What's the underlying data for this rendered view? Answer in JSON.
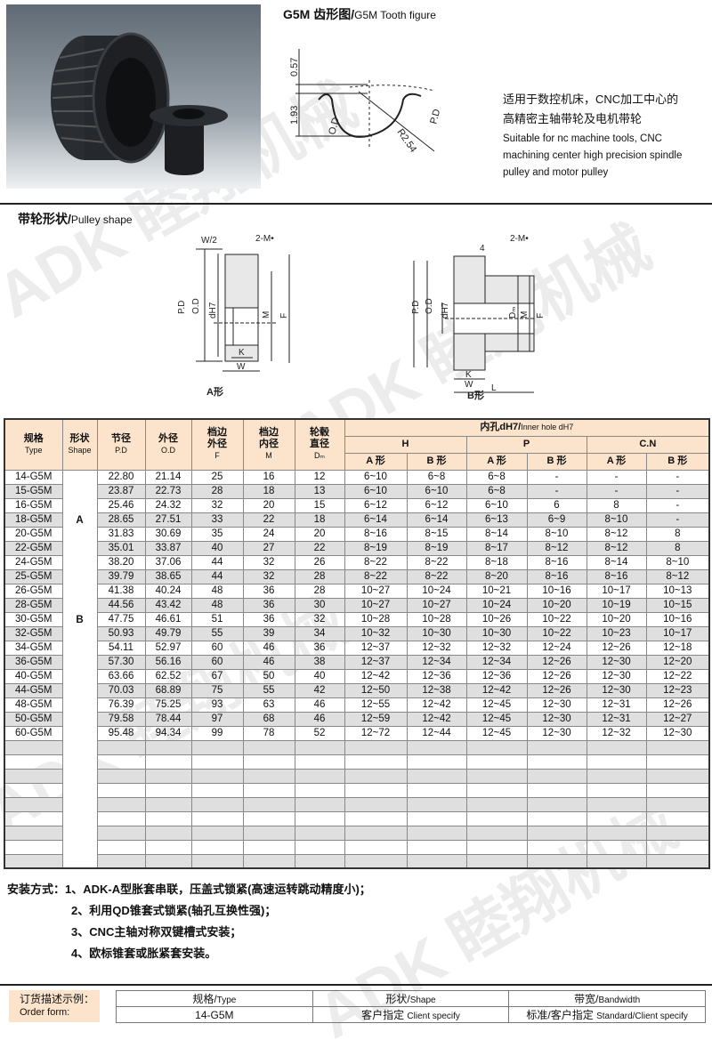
{
  "watermark": "ADK 睦翔机械",
  "tooth_figure": {
    "title_cn": "G5M 齿形图/",
    "title_en": "G5M Tooth figure",
    "dims": {
      "top": "0.57",
      "height": "1.93",
      "od": "O.D",
      "pd": "P.D",
      "radius": "R2.54"
    }
  },
  "description": {
    "cn_line1": "适用于数控机床，CNC加工中心的",
    "cn_line2": "高精密主轴带轮及电机带轮",
    "en_line1": "Suitable for nc machine tools, CNC",
    "en_line2": "machining center high precision spindle",
    "en_line3": "pulley and motor pulley"
  },
  "pulley_shape": {
    "title_cn": "带轮形状/",
    "title_en": "Pulley shape",
    "a": {
      "caption": "A形",
      "w2": "W/2",
      "screw": "2-M•",
      "pd": "P.D",
      "od": "O.D",
      "d": "dH7",
      "m": "M",
      "f": "F",
      "k": "K",
      "w": "W"
    },
    "b": {
      "caption": "B形",
      "four": "4",
      "screw": "2-M•",
      "pd": "P.D",
      "od": "O.D",
      "d": "dH7",
      "dm": "Dₘ",
      "m": "M",
      "f": "F",
      "k": "K",
      "w": "W",
      "l": "L"
    }
  },
  "table": {
    "headers": {
      "type": [
        "规格",
        "Type"
      ],
      "shape": [
        "形状",
        "Shape"
      ],
      "pd": [
        "节径",
        "P.D"
      ],
      "od": [
        "外径",
        "O.D"
      ],
      "f": [
        "档边",
        "外径",
        "F"
      ],
      "m": [
        "档边",
        "内径",
        "M"
      ],
      "dm": [
        "轮毂",
        "直径",
        "Dₘ"
      ],
      "inner_cn": "内孔dH7/",
      "inner_en": "Inner hole dH7",
      "groups": [
        "H",
        "P",
        "C.N"
      ],
      "sub": [
        "A 形",
        "B 形"
      ]
    },
    "shape_labels": [
      "A",
      "B"
    ],
    "rows": [
      [
        "14-G5M",
        "22.80",
        "21.14",
        "25",
        "16",
        "12",
        "6~10",
        "6~8",
        "6~8",
        "-",
        "-",
        "-"
      ],
      [
        "15-G5M",
        "23.87",
        "22.73",
        "28",
        "18",
        "13",
        "6~10",
        "6~10",
        "6~8",
        "-",
        "-",
        "-"
      ],
      [
        "16-G5M",
        "25.46",
        "24.32",
        "32",
        "20",
        "15",
        "6~12",
        "6~12",
        "6~10",
        "6",
        "8",
        "-"
      ],
      [
        "18-G5M",
        "28.65",
        "27.51",
        "33",
        "22",
        "18",
        "6~14",
        "6~14",
        "6~13",
        "6~9",
        "8~10",
        "-"
      ],
      [
        "20-G5M",
        "31.83",
        "30.69",
        "35",
        "24",
        "20",
        "8~16",
        "8~15",
        "8~14",
        "8~10",
        "8~12",
        "8"
      ],
      [
        "22-G5M",
        "35.01",
        "33.87",
        "40",
        "27",
        "22",
        "8~19",
        "8~19",
        "8~17",
        "8~12",
        "8~12",
        "8"
      ],
      [
        "24-G5M",
        "38.20",
        "37.06",
        "44",
        "32",
        "26",
        "8~22",
        "8~22",
        "8~18",
        "8~16",
        "8~14",
        "8~10"
      ],
      [
        "25-G5M",
        "39.79",
        "38.65",
        "44",
        "32",
        "28",
        "8~22",
        "8~22",
        "8~20",
        "8~16",
        "8~16",
        "8~12"
      ],
      [
        "26-G5M",
        "41.38",
        "40.24",
        "48",
        "36",
        "28",
        "10~27",
        "10~24",
        "10~21",
        "10~16",
        "10~17",
        "10~13"
      ],
      [
        "28-G5M",
        "44.56",
        "43.42",
        "48",
        "36",
        "30",
        "10~27",
        "10~27",
        "10~24",
        "10~20",
        "10~19",
        "10~15"
      ],
      [
        "30-G5M",
        "47.75",
        "46.61",
        "51",
        "36",
        "32",
        "10~28",
        "10~28",
        "10~26",
        "10~22",
        "10~20",
        "10~16"
      ],
      [
        "32-G5M",
        "50.93",
        "49.79",
        "55",
        "39",
        "34",
        "10~32",
        "10~30",
        "10~30",
        "10~22",
        "10~23",
        "10~17"
      ],
      [
        "34-G5M",
        "54.11",
        "52.97",
        "60",
        "46",
        "36",
        "12~37",
        "12~32",
        "12~32",
        "12~24",
        "12~26",
        "12~18"
      ],
      [
        "36-G5M",
        "57.30",
        "56.16",
        "60",
        "46",
        "38",
        "12~37",
        "12~34",
        "12~34",
        "12~26",
        "12~30",
        "12~20"
      ],
      [
        "40-G5M",
        "63.66",
        "62.52",
        "67",
        "50",
        "40",
        "12~42",
        "12~36",
        "12~36",
        "12~26",
        "12~30",
        "12~22"
      ],
      [
        "44-G5M",
        "70.03",
        "68.89",
        "75",
        "55",
        "42",
        "12~50",
        "12~38",
        "12~42",
        "12~26",
        "12~30",
        "12~23"
      ],
      [
        "48-G5M",
        "76.39",
        "75.25",
        "93",
        "63",
        "46",
        "12~55",
        "12~42",
        "12~45",
        "12~30",
        "12~31",
        "12~26"
      ],
      [
        "50-G5M",
        "79.58",
        "78.44",
        "97",
        "68",
        "46",
        "12~59",
        "12~42",
        "12~45",
        "12~30",
        "12~31",
        "12~27"
      ],
      [
        "60-G5M",
        "95.48",
        "94.34",
        "99",
        "78",
        "52",
        "12~72",
        "12~44",
        "12~45",
        "12~30",
        "12~32",
        "12~30"
      ]
    ]
  },
  "installation": {
    "label": "安装方式：",
    "items": [
      "1、ADK-A型胀套串联，压盖式锁紧(高速运转跳动精度小)；",
      "2、利用QD锥套式锁紧(轴孔互换性强)；",
      "3、CNC主轴对称双键槽式安装；",
      "4、欧标锥套或胀紧套安装。"
    ]
  },
  "order_form": {
    "label_cn": "订货描述示例：",
    "label_en": "Order form:",
    "headers": [
      [
        "规格/",
        "Type"
      ],
      [
        "形状/",
        "Shape"
      ],
      [
        "带宽/",
        "Bandwidth"
      ]
    ],
    "values": [
      [
        "14-G5M",
        ""
      ],
      [
        "客户指定 ",
        "Client specify"
      ],
      [
        "标准/客户指定 ",
        "Standard/Client specify"
      ]
    ]
  },
  "colors": {
    "header_bg": "#fbe3cc",
    "alt_row": "#dfdfdf"
  }
}
